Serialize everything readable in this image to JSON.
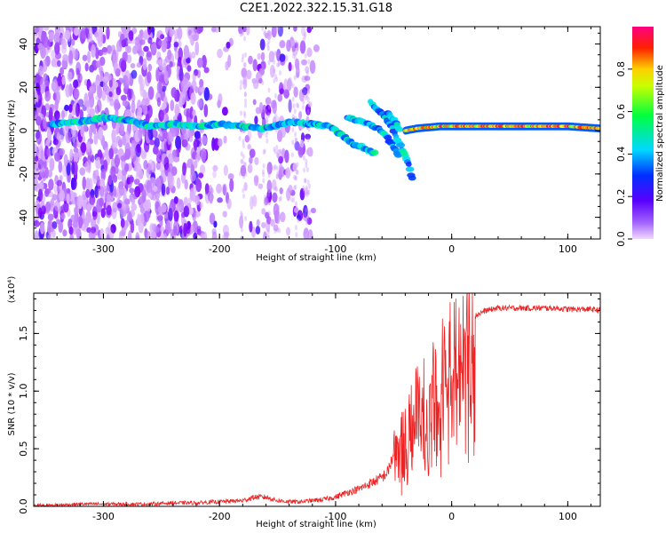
{
  "figure_title": "C2E1.2022.322.15.31.G18",
  "chart_data": [
    {
      "type": "heatmap",
      "title": "C2E1.2022.322.15.31.G18",
      "xlabel": "Height of straight line (km)",
      "ylabel": "Frequency (Hz)",
      "xlim": [
        -360,
        128
      ],
      "ylim": [
        -50,
        48
      ],
      "x_ticks": [
        -300,
        -200,
        -100,
        0,
        100
      ],
      "x_tick_labels": [
        "-300",
        "-200",
        "-100",
        "0",
        "100"
      ],
      "y_ticks": [
        -40,
        -20,
        0,
        20,
        40
      ],
      "y_tick_labels": [
        "-40",
        "-20",
        "0",
        "20",
        "40"
      ],
      "colorbar": {
        "label": "Normalized spectral amplitude",
        "range": [
          0,
          1
        ],
        "ticks": [
          0.0,
          0.2,
          0.4,
          0.6,
          0.8
        ],
        "tick_labels": [
          "0.0",
          "0.2",
          "0.4",
          "0.6",
          "0.8"
        ],
        "colormap": [
          "#f0d8ff",
          "#7a00ff",
          "#0030ff",
          "#00e0ff",
          "#00ff40",
          "#ffff00",
          "#ff3000",
          "#ff0080"
        ]
      },
      "main_ridge": [
        {
          "x": -345,
          "f": 3
        },
        {
          "x": -320,
          "f": 4
        },
        {
          "x": -300,
          "f": 6
        },
        {
          "x": -280,
          "f": 5
        },
        {
          "x": -260,
          "f": 2
        },
        {
          "x": -240,
          "f": 3
        },
        {
          "x": -220,
          "f": 2
        },
        {
          "x": -200,
          "f": 3
        },
        {
          "x": -180,
          "f": 2
        },
        {
          "x": -160,
          "f": 1
        },
        {
          "x": -140,
          "f": 4
        },
        {
          "x": -120,
          "f": 3
        },
        {
          "x": -105,
          "f": 2
        },
        {
          "x": -95,
          "f": -2
        },
        {
          "x": -85,
          "f": -6
        },
        {
          "x": -75,
          "f": -8
        },
        {
          "x": -65,
          "f": -11
        }
      ],
      "branches": [
        [
          {
            "x": -90,
            "f": 6
          },
          {
            "x": -75,
            "f": 4
          },
          {
            "x": -60,
            "f": 0
          },
          {
            "x": -52,
            "f": -6
          },
          {
            "x": -45,
            "f": -12
          }
        ],
        [
          {
            "x": -70,
            "f": 13
          },
          {
            "x": -60,
            "f": 8
          },
          {
            "x": -52,
            "f": 2
          },
          {
            "x": -45,
            "f": -6
          },
          {
            "x": -38,
            "f": -14
          },
          {
            "x": -33,
            "f": -24
          }
        ],
        [
          {
            "x": -55,
            "f": 8
          },
          {
            "x": -48,
            "f": 4
          },
          {
            "x": -44,
            "f": -1
          }
        ]
      ],
      "steady_tone": [
        {
          "x": -40,
          "f": 0
        },
        {
          "x": -30,
          "f": 1
        },
        {
          "x": -10,
          "f": 2
        },
        {
          "x": 20,
          "f": 2
        },
        {
          "x": 60,
          "f": 2
        },
        {
          "x": 100,
          "f": 2
        },
        {
          "x": 128,
          "f": 1
        }
      ]
    },
    {
      "type": "line",
      "xlabel": "Height of straight line (km)",
      "ylabel": "SNR (10 * v/v)",
      "y_multiplier": "(x10⁴)",
      "xlim": [
        -360,
        128
      ],
      "ylim": [
        0,
        1.85
      ],
      "x_ticks": [
        -300,
        -200,
        -100,
        0,
        100
      ],
      "x_tick_labels": [
        "-300",
        "-200",
        "-100",
        "0",
        "100"
      ],
      "y_ticks": [
        0,
        0.5,
        1.0,
        1.5
      ],
      "y_tick_labels": [
        "0.0",
        "0.5",
        "1.0",
        "1.5"
      ],
      "line_color": "#ee2222",
      "series": [
        {
          "x": [
            -360,
            -340,
            -320,
            -300,
            -280,
            -260,
            -240,
            -220,
            -200,
            -180,
            -170,
            -160,
            -150,
            -140,
            -130,
            -120,
            -110,
            -100,
            -90,
            -80,
            -70,
            -60,
            -55,
            -50,
            -45,
            -40,
            -35,
            -30,
            -25,
            -20,
            -15,
            -10,
            -5,
            0,
            5,
            10,
            15,
            20,
            25,
            30,
            40,
            50,
            60,
            70,
            80,
            90,
            100,
            110,
            120,
            128
          ],
          "y": [
            0.01,
            0.01,
            0.02,
            0.02,
            0.02,
            0.02,
            0.03,
            0.03,
            0.04,
            0.05,
            0.08,
            0.08,
            0.05,
            0.04,
            0.04,
            0.05,
            0.06,
            0.08,
            0.12,
            0.15,
            0.2,
            0.25,
            0.3,
            0.45,
            0.55,
            0.6,
            0.75,
            1.0,
            0.9,
            0.7,
            1.05,
            1.2,
            1.3,
            1.35,
            1.45,
            1.55,
            1.6,
            1.65,
            1.68,
            1.7,
            1.72,
            1.72,
            1.72,
            1.72,
            1.72,
            1.72,
            1.71,
            1.71,
            1.71,
            1.7
          ]
        }
      ]
    }
  ]
}
